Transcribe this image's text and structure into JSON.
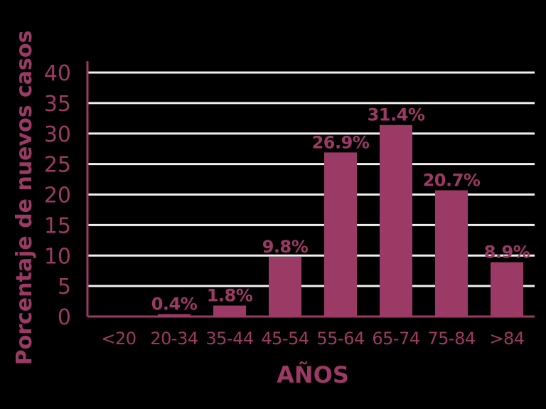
{
  "chart_data": {
    "type": "bar",
    "title": "",
    "xlabel": "AÑOS",
    "ylabel": "Porcentaje de nuevos casos",
    "ylim": [
      0,
      40
    ],
    "yticks": [
      "0",
      "5",
      "10",
      "15",
      "20",
      "25",
      "30",
      "35",
      "40"
    ],
    "categories": [
      "<20",
      "20-34",
      "35-44",
      "45-54",
      "55-64",
      "65-74",
      "75-84",
      ">84"
    ],
    "values": [
      0,
      0.4,
      1.8,
      9.8,
      26.9,
      31.4,
      20.7,
      8.9
    ],
    "data_labels": [
      "",
      "0.4%",
      "1.8%",
      "9.8%",
      "26.9%",
      "31.4%",
      "20.7%",
      "8.9%"
    ],
    "grid": true,
    "legend": "none",
    "colors": {
      "bar": "#9b3a64",
      "text": "#9b3a64",
      "axis": "#9b3a64",
      "grid": "#efefef",
      "background": "#000000"
    }
  }
}
